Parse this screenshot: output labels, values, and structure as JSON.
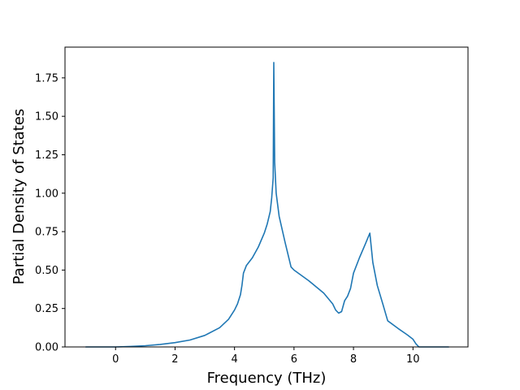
{
  "chart_data": {
    "type": "line",
    "title": "",
    "xlabel": "Frequency (THz)",
    "ylabel": "Partial Density of States",
    "xlim": [
      -1.7,
      11.85
    ],
    "ylim": [
      0.0,
      1.95
    ],
    "xticks": [
      0,
      2,
      4,
      6,
      8,
      10
    ],
    "yticks": [
      0.0,
      0.25,
      0.5,
      0.75,
      1.0,
      1.25,
      1.5,
      1.75
    ],
    "xtick_labels": [
      "0",
      "2",
      "4",
      "6",
      "8",
      "10"
    ],
    "ytick_labels": [
      "0.00",
      "0.25",
      "0.50",
      "0.75",
      "1.00",
      "1.25",
      "1.50",
      "1.75"
    ],
    "grid": false,
    "legend": "none",
    "series": [
      {
        "color": "#1f77b4",
        "x": [
          -1.0,
          0.0,
          0.5,
          1.0,
          1.5,
          2.0,
          2.5,
          3.0,
          3.5,
          3.8,
          4.0,
          4.1,
          4.2,
          4.25,
          4.3,
          4.4,
          4.6,
          4.8,
          5.0,
          5.1,
          5.2,
          5.25,
          5.3,
          5.32,
          5.35,
          5.4,
          5.5,
          5.7,
          5.9,
          6.0,
          6.5,
          7.0,
          7.3,
          7.4,
          7.5,
          7.6,
          7.7,
          7.8,
          7.9,
          8.0,
          8.2,
          8.4,
          8.55,
          8.65,
          8.8,
          9.0,
          9.15,
          9.5,
          9.8,
          10.0,
          10.1,
          10.2,
          10.5,
          11.2
        ],
        "y": [
          0.0,
          0.0,
          0.003,
          0.008,
          0.016,
          0.028,
          0.045,
          0.075,
          0.125,
          0.18,
          0.24,
          0.28,
          0.34,
          0.4,
          0.48,
          0.53,
          0.58,
          0.65,
          0.74,
          0.8,
          0.88,
          0.97,
          1.1,
          1.85,
          1.2,
          1.0,
          0.85,
          0.68,
          0.52,
          0.5,
          0.43,
          0.35,
          0.28,
          0.24,
          0.22,
          0.23,
          0.3,
          0.33,
          0.38,
          0.48,
          0.58,
          0.67,
          0.74,
          0.55,
          0.4,
          0.27,
          0.17,
          0.12,
          0.08,
          0.05,
          0.02,
          0.0,
          0.0,
          0.0
        ]
      }
    ]
  }
}
